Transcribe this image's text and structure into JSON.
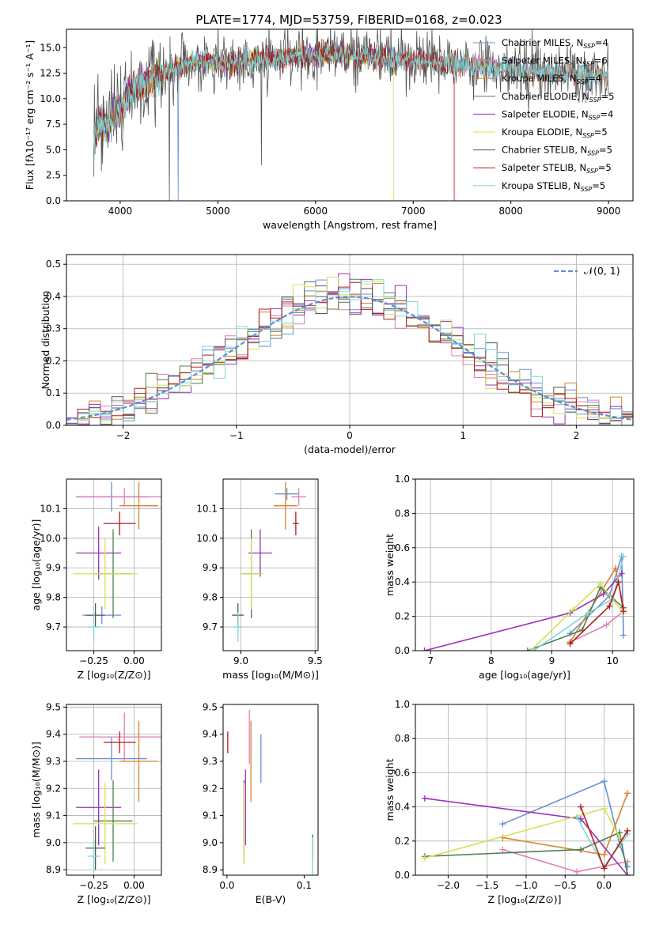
{
  "figure": {
    "title": "PLATE=1774, MJD=53759, FIBERID=0168, z=0.023"
  },
  "chart_data": [
    {
      "id": "spectrum",
      "type": "line",
      "xlabel": "wavelength [Angstrom, rest frame]",
      "ylabel": "Flux [fλ10⁻¹⁷ erg cm⁻² s⁻¹ A⁻¹]",
      "xlim": [
        3450,
        9250
      ],
      "ylim": [
        0,
        16.8
      ],
      "xticks": [
        4000,
        5000,
        6000,
        7000,
        8000,
        9000
      ],
      "yticks": [
        0.0,
        2.5,
        5.0,
        7.5,
        10.0,
        12.5,
        15.0
      ],
      "grid": false,
      "legend": "upper right",
      "legend_entries": [
        {
          "label": "Chabrier MILES, N",
          "sub": "SSP",
          "tail": "=4",
          "color": "#6a8fd6"
        },
        {
          "label": "Salpeter MILES, N",
          "sub": "SSP",
          "tail": "=6",
          "color": "#e07fb8"
        },
        {
          "label": "Kroupa MILES, N",
          "sub": "SSP",
          "tail": "=4",
          "color": "#d9822b"
        },
        {
          "label": "Chabrier ELODIE, N",
          "sub": "SSP",
          "tail": "=5",
          "color": "#4f7f4f"
        },
        {
          "label": "Salpeter ELODIE, N",
          "sub": "SSP",
          "tail": "=4",
          "color": "#9b30b8"
        },
        {
          "label": "Kroupa ELODIE, N",
          "sub": "SSP",
          "tail": "=5",
          "color": "#d4e157"
        },
        {
          "label": "Chabrier STELIB, N",
          "sub": "SSP",
          "tail": "=5",
          "color": "#555555"
        },
        {
          "label": "Salpeter STELIB, N",
          "sub": "SSP",
          "tail": "=5",
          "color": "#b01c1c"
        },
        {
          "label": "Kroupa STELIB, N",
          "sub": "SSP",
          "tail": "=5",
          "color": "#7fd6d6"
        }
      ],
      "continuum": [
        [
          3730,
          6.2
        ],
        [
          3800,
          7.8
        ],
        [
          3900,
          7.5
        ],
        [
          3950,
          9.0
        ],
        [
          4000,
          8.8
        ],
        [
          4100,
          10.5
        ],
        [
          4300,
          11.8
        ],
        [
          4500,
          12.8
        ],
        [
          4800,
          13.6
        ],
        [
          5100,
          13.5
        ],
        [
          5400,
          13.8
        ],
        [
          5800,
          14.1
        ],
        [
          6200,
          14.4
        ],
        [
          6600,
          14.1
        ],
        [
          7000,
          13.8
        ],
        [
          7400,
          13.4
        ],
        [
          7800,
          13.1
        ],
        [
          8200,
          12.7
        ],
        [
          8600,
          12.4
        ],
        [
          9000,
          12.2
        ]
      ]
    },
    {
      "id": "residuals",
      "type": "histogram",
      "xlabel": "(data-model)/error",
      "ylabel": "Normed distribution",
      "xlim": [
        -2.5,
        2.5
      ],
      "ylim": [
        0,
        0.53
      ],
      "xticks": [
        -2,
        -1,
        0,
        1,
        2
      ],
      "yticks": [
        0.0,
        0.1,
        0.2,
        0.3,
        0.4,
        0.5
      ],
      "grid": true,
      "legend": "upper right",
      "legend_label": "𝒩(0, 1)",
      "bin_width": 0.1,
      "bin_start": -2.5
    },
    {
      "id": "age-vs-Z",
      "type": "errorbar",
      "xlabel": "Z [log₁₀(Z/Z⊙)]",
      "ylabel": "age  [log₁₀(age/yr)]",
      "xlim": [
        -0.42,
        0.17
      ],
      "ylim": [
        9.62,
        10.2
      ],
      "xticks": [
        -0.25,
        0.0
      ],
      "xticklabels": [
        "−0.25",
        "0.00"
      ],
      "yticks": [
        9.7,
        9.8,
        9.9,
        10.0,
        10.1
      ],
      "grid": true,
      "points": [
        {
          "x": -0.2,
          "xerr": 0.12,
          "y": 9.74,
          "yerr": 0.03,
          "color": "#6a8fd6"
        },
        {
          "x": -0.14,
          "xerr": 0.22,
          "y": 10.14,
          "yerr": 0.05,
          "color": "#6a8fd6"
        },
        {
          "x": -0.06,
          "xerr": 0.28,
          "y": 10.14,
          "yerr": 0.03,
          "color": "#e07fb8"
        },
        {
          "x": 0.03,
          "xerr": 0.12,
          "y": 10.11,
          "yerr": 0.08,
          "color": "#d9822b"
        },
        {
          "x": -0.09,
          "xerr": 0.1,
          "y": 10.05,
          "yerr": 0.04,
          "color": "#b01c1c"
        },
        {
          "x": -0.22,
          "xerr": 0.14,
          "y": 9.95,
          "yerr": 0.09,
          "color": "#9b30b8"
        },
        {
          "x": -0.13,
          "xerr": 0.12,
          "y": 9.88,
          "yerr": 0.15,
          "color": "#4f7f4f"
        },
        {
          "x": -0.18,
          "xerr": 0.2,
          "y": 9.88,
          "yerr": 0.12,
          "color": "#d4e157"
        },
        {
          "x": -0.24,
          "xerr": 0.06,
          "y": 9.74,
          "yerr": 0.04,
          "color": "#555555"
        },
        {
          "x": -0.25,
          "xerr": 0.04,
          "y": 9.7,
          "yerr": 0.05,
          "color": "#7fd6d6"
        }
      ]
    },
    {
      "id": "age-vs-mass",
      "type": "errorbar",
      "xlabel": "mass [log₁₀(M/M⊙)]",
      "ylabel": "",
      "xlim": [
        8.88,
        9.52
      ],
      "ylim": [
        9.62,
        10.2
      ],
      "xticks": [
        9.0,
        9.5
      ],
      "xticklabels": [
        "9.0",
        "9.5"
      ],
      "yticks": [
        9.7,
        9.8,
        9.9,
        10.0,
        10.1
      ],
      "grid": true,
      "points": [
        {
          "x": 9.31,
          "xerr": 0.08,
          "y": 10.15,
          "yerr": 0.02,
          "color": "#6a8fd6"
        },
        {
          "x": 9.39,
          "xerr": 0.05,
          "y": 10.14,
          "yerr": 0.03,
          "color": "#e07fb8"
        },
        {
          "x": 9.3,
          "xerr": 0.08,
          "y": 10.11,
          "yerr": 0.08,
          "color": "#d9822b"
        },
        {
          "x": 9.37,
          "xerr": 0.02,
          "y": 10.05,
          "yerr": 0.04,
          "color": "#b01c1c"
        },
        {
          "x": 9.13,
          "xerr": 0.08,
          "y": 9.95,
          "yerr": 0.08,
          "color": "#9b30b8"
        },
        {
          "x": 9.07,
          "xerr": 0.06,
          "y": 9.88,
          "yerr": 0.15,
          "color": "#4f7f4f"
        },
        {
          "x": 9.07,
          "xerr": 0.08,
          "y": 9.88,
          "yerr": 0.12,
          "color": "#d4e157"
        },
        {
          "x": 8.98,
          "xerr": 0.04,
          "y": 9.74,
          "yerr": 0.04,
          "color": "#555555"
        },
        {
          "x": 8.98,
          "xerr": 0.03,
          "y": 9.7,
          "yerr": 0.05,
          "color": "#7fd6d6"
        }
      ]
    },
    {
      "id": "weight-vs-age",
      "type": "line",
      "xlabel": "age  [log₁₀(age/yr)]",
      "ylabel": "mass weight",
      "xlim": [
        6.75,
        10.35
      ],
      "ylim": [
        0,
        1.0
      ],
      "xticks": [
        7,
        8,
        9,
        10
      ],
      "yticks": [
        0.0,
        0.2,
        0.4,
        0.6,
        0.8,
        1.0
      ],
      "grid": true,
      "series": [
        {
          "color": "#6a8fd6",
          "x": [
            9.3,
            9.95,
            10.15,
            10.18
          ],
          "y": [
            0.1,
            0.32,
            0.55,
            0.09
          ]
        },
        {
          "color": "#e07fb8",
          "x": [
            9.3,
            9.9,
            10.18
          ],
          "y": [
            0.05,
            0.15,
            0.23
          ]
        },
        {
          "color": "#d9822b",
          "x": [
            9.3,
            10.05,
            10.18
          ],
          "y": [
            0.05,
            0.48,
            0.25
          ]
        },
        {
          "color": "#9b30b8",
          "x": [
            6.9,
            9.3,
            9.85,
            10.15
          ],
          "y": [
            0.0,
            0.22,
            0.33,
            0.45
          ]
        },
        {
          "color": "#4f7f4f",
          "x": [
            8.6,
            9.5,
            9.8,
            10.18
          ],
          "y": [
            0.0,
            0.12,
            0.37,
            0.25
          ]
        },
        {
          "color": "#d4e157",
          "x": [
            8.65,
            9.35,
            9.8,
            10.18
          ],
          "y": [
            0.0,
            0.24,
            0.39,
            0.22
          ]
        },
        {
          "color": "#7fd6d6",
          "x": [
            8.7,
            9.6,
            10.0,
            10.18
          ],
          "y": [
            0.0,
            0.22,
            0.3,
            0.55
          ]
        },
        {
          "color": "#b01c1c",
          "x": [
            9.3,
            9.95,
            10.1,
            10.18
          ],
          "y": [
            0.04,
            0.26,
            0.4,
            0.23
          ]
        }
      ]
    },
    {
      "id": "mass-vs-Z",
      "type": "errorbar",
      "xlabel": "Z [log₁₀(Z/Z⊙)]",
      "ylabel": "mass [log₁₀(M/M⊙)]",
      "xlim": [
        -0.42,
        0.17
      ],
      "ylim": [
        8.88,
        9.51
      ],
      "xticks": [
        -0.25,
        0.0
      ],
      "xticklabels": [
        "−0.25",
        "0.00"
      ],
      "yticks": [
        8.9,
        9.0,
        9.1,
        9.2,
        9.3,
        9.4,
        9.5
      ],
      "grid": true,
      "points": [
        {
          "x": -0.14,
          "xerr": 0.22,
          "y": 9.31,
          "yerr": 0.08,
          "color": "#6a8fd6"
        },
        {
          "x": -0.06,
          "xerr": 0.28,
          "y": 9.39,
          "yerr": 0.09,
          "color": "#e07fb8"
        },
        {
          "x": 0.03,
          "xerr": 0.12,
          "y": 9.3,
          "yerr": 0.15,
          "color": "#d9822b"
        },
        {
          "x": -0.09,
          "xerr": 0.1,
          "y": 9.37,
          "yerr": 0.04,
          "color": "#b01c1c"
        },
        {
          "x": -0.22,
          "xerr": 0.14,
          "y": 9.13,
          "yerr": 0.14,
          "color": "#9b30b8"
        },
        {
          "x": -0.13,
          "xerr": 0.12,
          "y": 9.08,
          "yerr": 0.15,
          "color": "#4f7f4f"
        },
        {
          "x": -0.18,
          "xerr": 0.2,
          "y": 9.07,
          "yerr": 0.15,
          "color": "#d4e157"
        },
        {
          "x": -0.24,
          "xerr": 0.06,
          "y": 8.98,
          "yerr": 0.08,
          "color": "#555555"
        },
        {
          "x": -0.25,
          "xerr": 0.04,
          "y": 8.95,
          "yerr": 0.06,
          "color": "#7fd6d6"
        }
      ]
    },
    {
      "id": "mass-vs-ebv",
      "type": "errorbar",
      "xlabel": "E(B-V)",
      "ylabel": "",
      "xlim": [
        -0.005,
        0.118
      ],
      "ylim": [
        8.88,
        9.51
      ],
      "xticks": [
        0.0,
        0.1
      ],
      "xticklabels": [
        "0.0",
        "0.1"
      ],
      "yticks": [
        8.9,
        9.0,
        9.1,
        9.2,
        9.3,
        9.4,
        9.5
      ],
      "grid": false,
      "points": [
        {
          "x": 0.001,
          "xerr": 0,
          "y": 9.37,
          "yerr": 0.04,
          "color": "#b01c1c"
        },
        {
          "x": 0.044,
          "xerr": 0,
          "y": 9.31,
          "yerr": 0.09,
          "color": "#6a8fd6"
        },
        {
          "x": 0.031,
          "xerr": 0,
          "y": 9.3,
          "yerr": 0.15,
          "color": "#d9822b"
        },
        {
          "x": 0.029,
          "xerr": 0,
          "y": 9.39,
          "yerr": 0.1,
          "color": "#e07fb8"
        },
        {
          "x": 0.024,
          "xerr": 0,
          "y": 9.13,
          "yerr": 0.14,
          "color": "#9b30b8"
        },
        {
          "x": 0.022,
          "xerr": 0,
          "y": 9.08,
          "yerr": 0.15,
          "color": "#4f7f4f"
        },
        {
          "x": 0.022,
          "xerr": 0,
          "y": 9.07,
          "yerr": 0.15,
          "color": "#d4e157"
        },
        {
          "x": 0.111,
          "xerr": 0,
          "y": 8.98,
          "yerr": 0.05,
          "color": "#555555"
        },
        {
          "x": 0.111,
          "xerr": 0,
          "y": 8.95,
          "yerr": 0.07,
          "color": "#7fd6d6"
        }
      ]
    },
    {
      "id": "weight-vs-Z",
      "type": "line",
      "xlabel": "Z [log₁₀(Z/Z⊙)]",
      "ylabel": "mass weight",
      "xlim": [
        -2.42,
        0.38
      ],
      "ylim": [
        0,
        1.0
      ],
      "xticks": [
        -2.0,
        -1.5,
        -1.0,
        -0.5,
        0.0
      ],
      "xticklabels": [
        "−2.0",
        "−1.5",
        "−1.0",
        "−0.5",
        "0.0"
      ],
      "yticks": [
        0.0,
        0.2,
        0.4,
        0.6,
        0.8,
        1.0
      ],
      "grid": true,
      "series": [
        {
          "color": "#6a8fd6",
          "x": [
            -1.3,
            0.0,
            0.2,
            0.3
          ],
          "y": [
            0.3,
            0.55,
            0.18,
            0.05
          ]
        },
        {
          "color": "#e07fb8",
          "x": [
            -1.3,
            -0.35,
            0.3
          ],
          "y": [
            0.15,
            0.02,
            0.08
          ]
        },
        {
          "color": "#d9822b",
          "x": [
            -1.3,
            0.0,
            0.3
          ],
          "y": [
            0.22,
            0.12,
            0.48
          ]
        },
        {
          "color": "#9b30b8",
          "x": [
            -2.3,
            -0.3,
            0.3
          ],
          "y": [
            0.45,
            0.33,
            0.0
          ]
        },
        {
          "color": "#4f7f4f",
          "x": [
            -2.3,
            -0.3,
            0.2,
            0.3
          ],
          "y": [
            0.11,
            0.15,
            0.25,
            0.0
          ]
        },
        {
          "color": "#d4e157",
          "x": [
            -2.3,
            0.0,
            0.2
          ],
          "y": [
            0.1,
            0.39,
            0.22
          ]
        },
        {
          "color": "#7fd6d6",
          "x": [
            -0.35,
            0.0,
            0.3
          ],
          "y": [
            0.34,
            0.05,
            0.24
          ]
        },
        {
          "color": "#b01c1c",
          "x": [
            -0.3,
            0.0,
            0.3
          ],
          "y": [
            0.4,
            0.04,
            0.26
          ]
        }
      ]
    }
  ]
}
